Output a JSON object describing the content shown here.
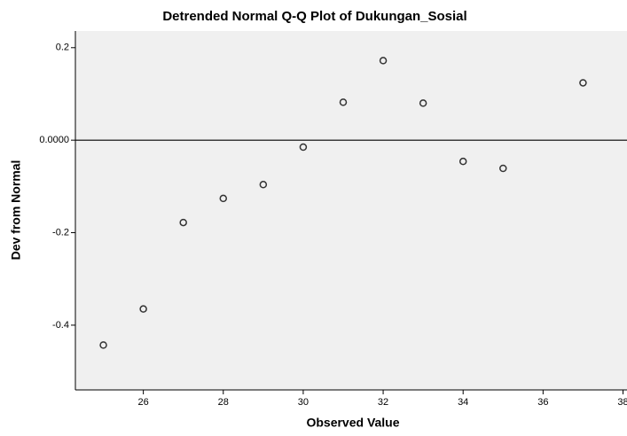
{
  "chart_data": {
    "type": "scatter",
    "title": "Detrended Normal Q-Q Plot of Dukungan_Sosial",
    "x_label": "Observed Value",
    "y_label": "Dev from Normal",
    "x": [
      25,
      26,
      27,
      28,
      29,
      30,
      31,
      32,
      33,
      34,
      35,
      37
    ],
    "values": [
      -0.443,
      -0.365,
      -0.178,
      -0.126,
      -0.096,
      -0.015,
      0.082,
      0.172,
      0.08,
      -0.046,
      -0.061,
      0.124
    ],
    "color": "#333333",
    "reference_line": 0,
    "xlim": [
      24.3,
      38.1
    ],
    "ylim": [
      -0.54,
      0.236
    ],
    "xticks": [
      26,
      28,
      30,
      32,
      34,
      36,
      38
    ],
    "yticks": [
      0.2,
      {
        "value": 0,
        "label": "0.0000"
      },
      -0.2,
      -0.4
    ]
  }
}
